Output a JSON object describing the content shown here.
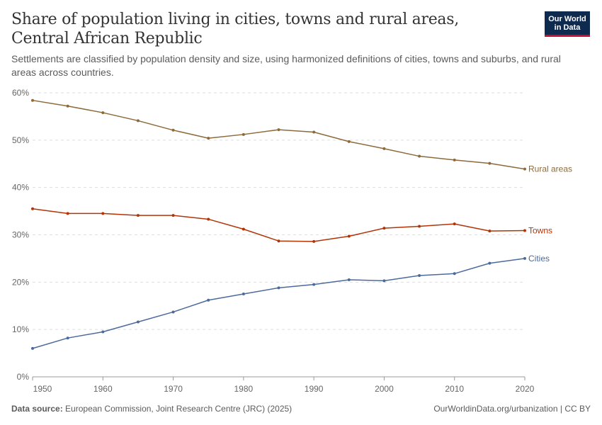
{
  "header": {
    "title": "Share of population living in cities, towns and rural areas, Central African Republic",
    "subtitle": "Settlements are classified by population density and size, using harmonized definitions of cities, towns and suburbs, and rural areas across countries.",
    "logo_line1": "Our World",
    "logo_line2": "in Data"
  },
  "footer": {
    "source_label": "Data source:",
    "source_text": "European Commission, Joint Research Centre (JRC) (2025)",
    "url_text": "OurWorldinData.org/urbanization | CC BY"
  },
  "colors": {
    "rural": "#8c6a3a",
    "towns": "#b13507",
    "cities": "#4c6a9c",
    "grid": "#dddddd",
    "axis": "#999999",
    "tick_text": "#666666"
  },
  "chart_data": {
    "type": "line",
    "x": [
      1950,
      1955,
      1960,
      1965,
      1970,
      1975,
      1980,
      1985,
      1990,
      1995,
      2000,
      2005,
      2010,
      2015,
      2020
    ],
    "xlim": [
      1950,
      2020
    ],
    "ylim": [
      0,
      60
    ],
    "x_ticks": [
      1950,
      1960,
      1970,
      1980,
      1990,
      2000,
      2010,
      2020
    ],
    "y_ticks": [
      0,
      10,
      20,
      30,
      40,
      50,
      60
    ],
    "y_tick_labels": [
      "0%",
      "10%",
      "20%",
      "30%",
      "40%",
      "50%",
      "60%"
    ],
    "grid": "horizontal dashed",
    "legend": "inline labels at line ends",
    "series": [
      {
        "name": "Rural areas",
        "color_key": "rural",
        "values": [
          58.4,
          57.2,
          55.8,
          54.1,
          52.1,
          50.4,
          51.2,
          52.2,
          51.7,
          49.7,
          48.2,
          46.6,
          45.8,
          45.1,
          43.9
        ]
      },
      {
        "name": "Towns",
        "color_key": "towns",
        "values": [
          35.5,
          34.5,
          34.5,
          34.1,
          34.1,
          33.3,
          31.2,
          28.7,
          28.6,
          29.7,
          31.4,
          31.8,
          32.3,
          30.8,
          30.9
        ]
      },
      {
        "name": "Cities",
        "color_key": "cities",
        "values": [
          6.0,
          8.2,
          9.5,
          11.6,
          13.7,
          16.2,
          17.5,
          18.8,
          19.5,
          20.5,
          20.3,
          21.4,
          21.8,
          24.0,
          25.0
        ]
      }
    ]
  }
}
